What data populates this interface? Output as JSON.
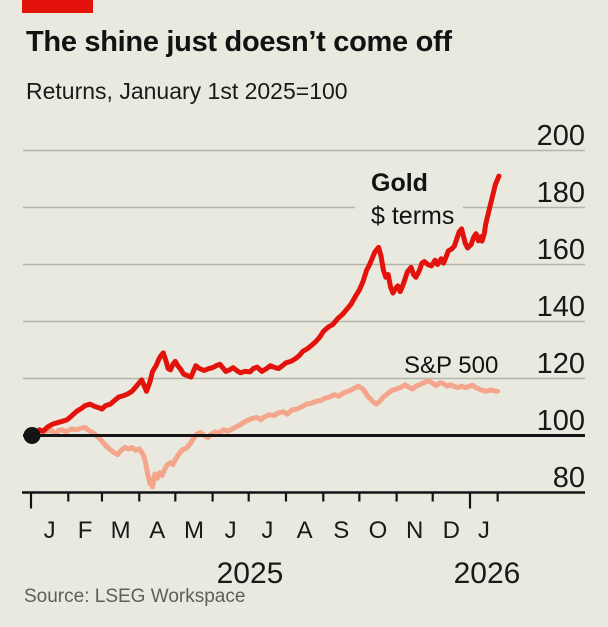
{
  "colors": {
    "background": "#e9e9e0",
    "brand_red": "#e3120b",
    "gold_line": "#e3120b",
    "sp500_line": "#f5a58c",
    "gridline": "#b3b5ab",
    "baseline": "#141414",
    "axis": "#141414",
    "text": "#121212",
    "source_text": "#5f5f58"
  },
  "chart_data": {
    "type": "line",
    "title": "The shine just doesn’t come off",
    "subtitle": "Returns, January 1st 2025=100",
    "x_unit": "days since 2025-01-01",
    "xlim": [
      0,
      389
    ],
    "ylim": [
      80,
      200
    ],
    "y_ticks": [
      80,
      100,
      120,
      140,
      160,
      180,
      200
    ],
    "baseline_value": 100,
    "grid": "horizontal-only",
    "legend_position": "annotated-inline",
    "x_month_ticks": {
      "boundaries_days": [
        0,
        31,
        59,
        90,
        120,
        151,
        181,
        212,
        243,
        273,
        304,
        334,
        365
      ],
      "long_tick_days": [
        0,
        365
      ],
      "end_tick_day": 388,
      "labels": [
        "J",
        "F",
        "M",
        "A",
        "M",
        "J",
        "J",
        "A",
        "S",
        "O",
        "N",
        "D",
        "J"
      ]
    },
    "year_labels": [
      {
        "text": "2025"
      },
      {
        "text": "2026"
      }
    ],
    "start_marker": {
      "day": 0,
      "value": 100,
      "color": "#141414"
    },
    "series": [
      {
        "name": "Gold",
        "label": "Gold",
        "sublabel": "$ terms",
        "color": "#e3120b",
        "points": [
          [
            0,
            100
          ],
          [
            4,
            101
          ],
          [
            7,
            102
          ],
          [
            10,
            101.5
          ],
          [
            14,
            103
          ],
          [
            18,
            104
          ],
          [
            22,
            104.5
          ],
          [
            26,
            105
          ],
          [
            30,
            105.5
          ],
          [
            34,
            107
          ],
          [
            38,
            108.5
          ],
          [
            42,
            109.5
          ],
          [
            45,
            110.5
          ],
          [
            49,
            111
          ],
          [
            53,
            110.2
          ],
          [
            56,
            109.8
          ],
          [
            59,
            109.3
          ],
          [
            62,
            110.5
          ],
          [
            66,
            111
          ],
          [
            70,
            112.5
          ],
          [
            73,
            113.5
          ],
          [
            77,
            114
          ],
          [
            80,
            114.5
          ],
          [
            84,
            115.5
          ],
          [
            87,
            117
          ],
          [
            90,
            118.5
          ],
          [
            92,
            119.5
          ],
          [
            94,
            117.5
          ],
          [
            96,
            115.5
          ],
          [
            99,
            119
          ],
          [
            101,
            122.5
          ],
          [
            104,
            124.5
          ],
          [
            106,
            126.5
          ],
          [
            108,
            128
          ],
          [
            110,
            129
          ],
          [
            112,
            126.5
          ],
          [
            114,
            123.5
          ],
          [
            116,
            123
          ],
          [
            118,
            125
          ],
          [
            120,
            126
          ],
          [
            122,
            124.5
          ],
          [
            124,
            123.5
          ],
          [
            127,
            121.5
          ],
          [
            130,
            121
          ],
          [
            133,
            120.5
          ],
          [
            135,
            122.5
          ],
          [
            137,
            124.5
          ],
          [
            140,
            123.5
          ],
          [
            144,
            122.8
          ],
          [
            148,
            123.5
          ],
          [
            151,
            123.8
          ],
          [
            154,
            124.5
          ],
          [
            157,
            125
          ],
          [
            160,
            123.5
          ],
          [
            162,
            122.5
          ],
          [
            165,
            123
          ],
          [
            168,
            123.8
          ],
          [
            171,
            122.8
          ],
          [
            174,
            122
          ],
          [
            178,
            122.5
          ],
          [
            182,
            122.3
          ],
          [
            185,
            123.5
          ],
          [
            188,
            124
          ],
          [
            192,
            122.5
          ],
          [
            196,
            123.5
          ],
          [
            199,
            124.5
          ],
          [
            203,
            123.8
          ],
          [
            206,
            123.5
          ],
          [
            209,
            124.5
          ],
          [
            212,
            125.5
          ],
          [
            216,
            126
          ],
          [
            220,
            127
          ],
          [
            223,
            128
          ],
          [
            226,
            129.5
          ],
          [
            230,
            130.5
          ],
          [
            233,
            131.5
          ],
          [
            237,
            133
          ],
          [
            240,
            134.5
          ],
          [
            243,
            136.5
          ],
          [
            247,
            138
          ],
          [
            251,
            139
          ],
          [
            255,
            141
          ],
          [
            259,
            142.5
          ],
          [
            262,
            144
          ],
          [
            266,
            146
          ],
          [
            270,
            149
          ],
          [
            273,
            151
          ],
          [
            276,
            154
          ],
          [
            279,
            158
          ],
          [
            281,
            159.5
          ],
          [
            283,
            161.5
          ],
          [
            286,
            164.5
          ],
          [
            289,
            166
          ],
          [
            291,
            163
          ],
          [
            293,
            158
          ],
          [
            295,
            155.5
          ],
          [
            297,
            156.5
          ],
          [
            299,
            152
          ],
          [
            301,
            150
          ],
          [
            303,
            151.5
          ],
          [
            305,
            152.5
          ],
          [
            307,
            150.5
          ],
          [
            309,
            152.5
          ],
          [
            311,
            155
          ],
          [
            313,
            157.5
          ],
          [
            316,
            159
          ],
          [
            318,
            156.5
          ],
          [
            320,
            155.5
          ],
          [
            323,
            158
          ],
          [
            325,
            160.5
          ],
          [
            327,
            161
          ],
          [
            330,
            160
          ],
          [
            333,
            159.5
          ],
          [
            336,
            161.5
          ],
          [
            338,
            160
          ],
          [
            341,
            162
          ],
          [
            343,
            160.5
          ],
          [
            345,
            162.5
          ],
          [
            347,
            164.8
          ],
          [
            350,
            165.5
          ],
          [
            352,
            166.5
          ],
          [
            354,
            169
          ],
          [
            356,
            171.5
          ],
          [
            358,
            172.5
          ],
          [
            361,
            167.5
          ],
          [
            363,
            165.8
          ],
          [
            366,
            167
          ],
          [
            368,
            169.5
          ],
          [
            370,
            170.8
          ],
          [
            372,
            168.3
          ],
          [
            374,
            169.8
          ],
          [
            375,
            168.2
          ],
          [
            377,
            171
          ],
          [
            378,
            174
          ],
          [
            380,
            177.5
          ],
          [
            382,
            181
          ],
          [
            384,
            184.5
          ],
          [
            386,
            188
          ],
          [
            389,
            191
          ]
        ]
      },
      {
        "name": "S&P 500",
        "label": "S&P 500",
        "color": "#f5a58c",
        "points": [
          [
            0,
            100
          ],
          [
            4,
            100.3
          ],
          [
            7,
            100.8
          ],
          [
            10,
            101
          ],
          [
            13,
            101.5
          ],
          [
            17,
            101.8
          ],
          [
            20,
            100.5
          ],
          [
            23,
            101.8
          ],
          [
            26,
            102
          ],
          [
            29,
            101.3
          ],
          [
            31,
            101.8
          ],
          [
            34,
            102.3
          ],
          [
            38,
            102
          ],
          [
            41,
            102.5
          ],
          [
            45,
            102.8
          ],
          [
            48,
            101.8
          ],
          [
            52,
            100.8
          ],
          [
            55,
            99.8
          ],
          [
            59,
            98
          ],
          [
            62,
            96.5
          ],
          [
            66,
            95
          ],
          [
            69,
            94
          ],
          [
            72,
            93.3
          ],
          [
            75,
            94.8
          ],
          [
            78,
            95.8
          ],
          [
            81,
            95.3
          ],
          [
            84,
            95.8
          ],
          [
            87,
            94.8
          ],
          [
            90,
            95.3
          ],
          [
            93,
            93.5
          ],
          [
            95,
            91
          ],
          [
            97,
            86.5
          ],
          [
            99,
            83
          ],
          [
            100,
            84.5
          ],
          [
            101,
            82
          ],
          [
            103,
            86.5
          ],
          [
            105,
            85
          ],
          [
            107,
            87
          ],
          [
            109,
            86
          ],
          [
            111,
            88
          ],
          [
            113,
            89.5
          ],
          [
            116,
            90.5
          ],
          [
            118,
            89.8
          ],
          [
            120,
            91.5
          ],
          [
            123,
            93.5
          ],
          [
            126,
            95
          ],
          [
            129,
            95.5
          ],
          [
            131,
            96.5
          ],
          [
            133,
            97.5
          ],
          [
            135,
            99
          ],
          [
            138,
            100.5
          ],
          [
            141,
            101
          ],
          [
            144,
            100
          ],
          [
            147,
            99.3
          ],
          [
            150,
            100.5
          ],
          [
            153,
            101.3
          ],
          [
            156,
            100.8
          ],
          [
            160,
            102
          ],
          [
            164,
            101.5
          ],
          [
            168,
            102.5
          ],
          [
            172,
            103.3
          ],
          [
            176,
            104.3
          ],
          [
            180,
            105.3
          ],
          [
            184,
            106
          ],
          [
            188,
            106.3
          ],
          [
            191,
            105.5
          ],
          [
            194,
            106.5
          ],
          [
            198,
            107.3
          ],
          [
            202,
            107
          ],
          [
            206,
            108
          ],
          [
            210,
            108.3
          ],
          [
            213,
            107.5
          ],
          [
            217,
            109
          ],
          [
            221,
            109.3
          ],
          [
            225,
            110
          ],
          [
            229,
            111
          ],
          [
            233,
            111.3
          ],
          [
            237,
            112
          ],
          [
            241,
            112.3
          ],
          [
            244,
            113
          ],
          [
            248,
            113.5
          ],
          [
            252,
            114.3
          ],
          [
            256,
            113.8
          ],
          [
            260,
            115
          ],
          [
            264,
            115.5
          ],
          [
            268,
            116.3
          ],
          [
            272,
            117.3
          ],
          [
            276,
            116.3
          ],
          [
            280,
            113.8
          ],
          [
            284,
            112
          ],
          [
            287,
            111
          ],
          [
            290,
            112
          ],
          [
            293,
            113.5
          ],
          [
            296,
            114.5
          ],
          [
            300,
            115.8
          ],
          [
            304,
            116.3
          ],
          [
            308,
            117
          ],
          [
            311,
            117.8
          ],
          [
            314,
            117
          ],
          [
            317,
            116.3
          ],
          [
            320,
            117.3
          ],
          [
            324,
            118
          ],
          [
            328,
            118.8
          ],
          [
            331,
            119.2
          ],
          [
            334,
            118.3
          ],
          [
            337,
            117.5
          ],
          [
            340,
            118.5
          ],
          [
            343,
            118.2
          ],
          [
            346,
            117.3
          ],
          [
            349,
            117.8
          ],
          [
            352,
            117.2
          ],
          [
            355,
            116.8
          ],
          [
            358,
            117.3
          ],
          [
            361,
            116.8
          ],
          [
            364,
            117.2
          ],
          [
            367,
            117.6
          ],
          [
            370,
            116.8
          ],
          [
            373,
            116.2
          ],
          [
            376,
            115.8
          ],
          [
            379,
            115.5
          ],
          [
            382,
            116
          ],
          [
            385,
            115.7
          ],
          [
            388,
            115.5
          ]
        ]
      }
    ]
  },
  "footer": {
    "source": "Source: LSEG Workspace"
  }
}
